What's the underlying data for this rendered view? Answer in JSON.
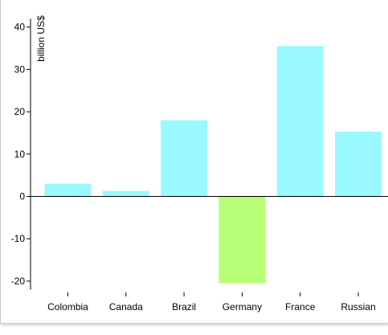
{
  "chart_data": {
    "type": "bar",
    "ylabel": "billion US$",
    "categories": [
      "Colombia",
      "Canada",
      "Brazil",
      "Germany",
      "France",
      "Russian"
    ],
    "values": [
      3,
      1.3,
      18,
      -20.5,
      35.5,
      15.3
    ],
    "colors": [
      "#99f9ff",
      "#99f9ff",
      "#99f9ff",
      "#b8ff78",
      "#99f9ff",
      "#99f9ff"
    ],
    "positive_color": "#99f9ff",
    "negative_color": "#b8ff78",
    "ylim": [
      -23,
      44
    ],
    "yticks": [
      -20,
      -10,
      0,
      10,
      20,
      30,
      40
    ],
    "ytick_labels": [
      "-20",
      "-10",
      "0",
      "10",
      "20",
      "30",
      "40"
    ],
    "grid": false
  }
}
